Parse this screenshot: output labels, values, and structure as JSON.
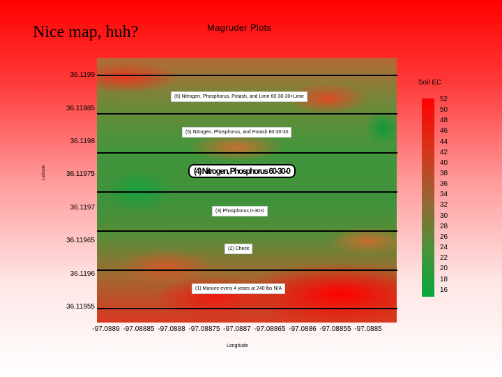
{
  "slide_title": "Nice map, huh?",
  "map_title": "Magruder Plots",
  "axes": {
    "ylabel": "Latitude",
    "xlabel": "Longitude",
    "yticks": [
      "36.1199",
      "36.11985",
      "36.1198",
      "36.11975",
      "36.1197",
      "36.11965",
      "36.1196",
      "36.11955"
    ],
    "xticks": [
      "-97.0889",
      "-97.08885",
      "-97.0888",
      "-97.08875",
      "-97.0887",
      "-97.08865",
      "-97.0886",
      "-97.08855",
      "-97.0885"
    ]
  },
  "plots": [
    {
      "label": "(6) Nitrogen, Phosphorus, Potash, and Lime 60-30-30+Lime",
      "style": "normal"
    },
    {
      "label": "(5) Nitrogen, Phosphorus, and Potash 60-30-30",
      "style": "normal"
    },
    {
      "label": "(4) Nitrogen, Phosphorus 60-30-0",
      "style": "bold"
    },
    {
      "label": "(3) Phosphorus 0-30-0",
      "style": "normal"
    },
    {
      "label": "(2) Check",
      "style": "normal"
    },
    {
      "label": "(1) Manure every 4 years at 240 lbs N/A",
      "style": "normal"
    }
  ],
  "legend": {
    "title": "Soil EC",
    "ticks": [
      "52",
      "50",
      "48",
      "46",
      "44",
      "42",
      "40",
      "38",
      "36",
      "34",
      "32",
      "30",
      "28",
      "26",
      "24",
      "22",
      "20",
      "18",
      "16"
    ],
    "colors": {
      "high": "#ff0000",
      "mid": "#9b6432",
      "low": "#07a83c"
    }
  },
  "colors": {
    "background_top": "#ff0000",
    "background_bottom": "#ffffff"
  }
}
